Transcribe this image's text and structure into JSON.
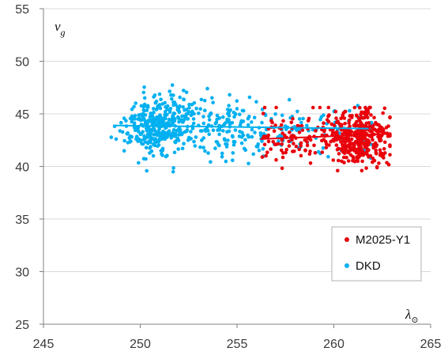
{
  "chart_data": {
    "type": "scatter",
    "title": "",
    "xlabel": "λ",
    "xlabel_sub": "⊙",
    "ylabel": "v",
    "ylabel_sub": "g",
    "xlim": [
      245,
      265
    ],
    "ylim": [
      25,
      55
    ],
    "xticks": [
      245,
      250,
      255,
      260,
      265
    ],
    "yticks": [
      25,
      30,
      35,
      40,
      45,
      50,
      55
    ],
    "grid": "horizontal",
    "legend_position": "bottom-right",
    "series": [
      {
        "name": "M2025-Y1",
        "color": "#e8000b",
        "x_range": [
          256.3,
          262.9
        ],
        "y_range": [
          39.6,
          45.6
        ],
        "point_count": 450,
        "trend": {
          "x": [
            256.2,
            262.9
          ],
          "y": [
            42.6,
            43.1
          ]
        }
      },
      {
        "name": "DKD",
        "color": "#00b0f0",
        "x_range": [
          248.5,
          262.0
        ],
        "y_range": [
          39.5,
          48.2
        ],
        "point_count": 600,
        "trend": {
          "x": [
            248.6,
            261.8
          ],
          "y": [
            43.9,
            43.6
          ]
        }
      }
    ]
  }
}
